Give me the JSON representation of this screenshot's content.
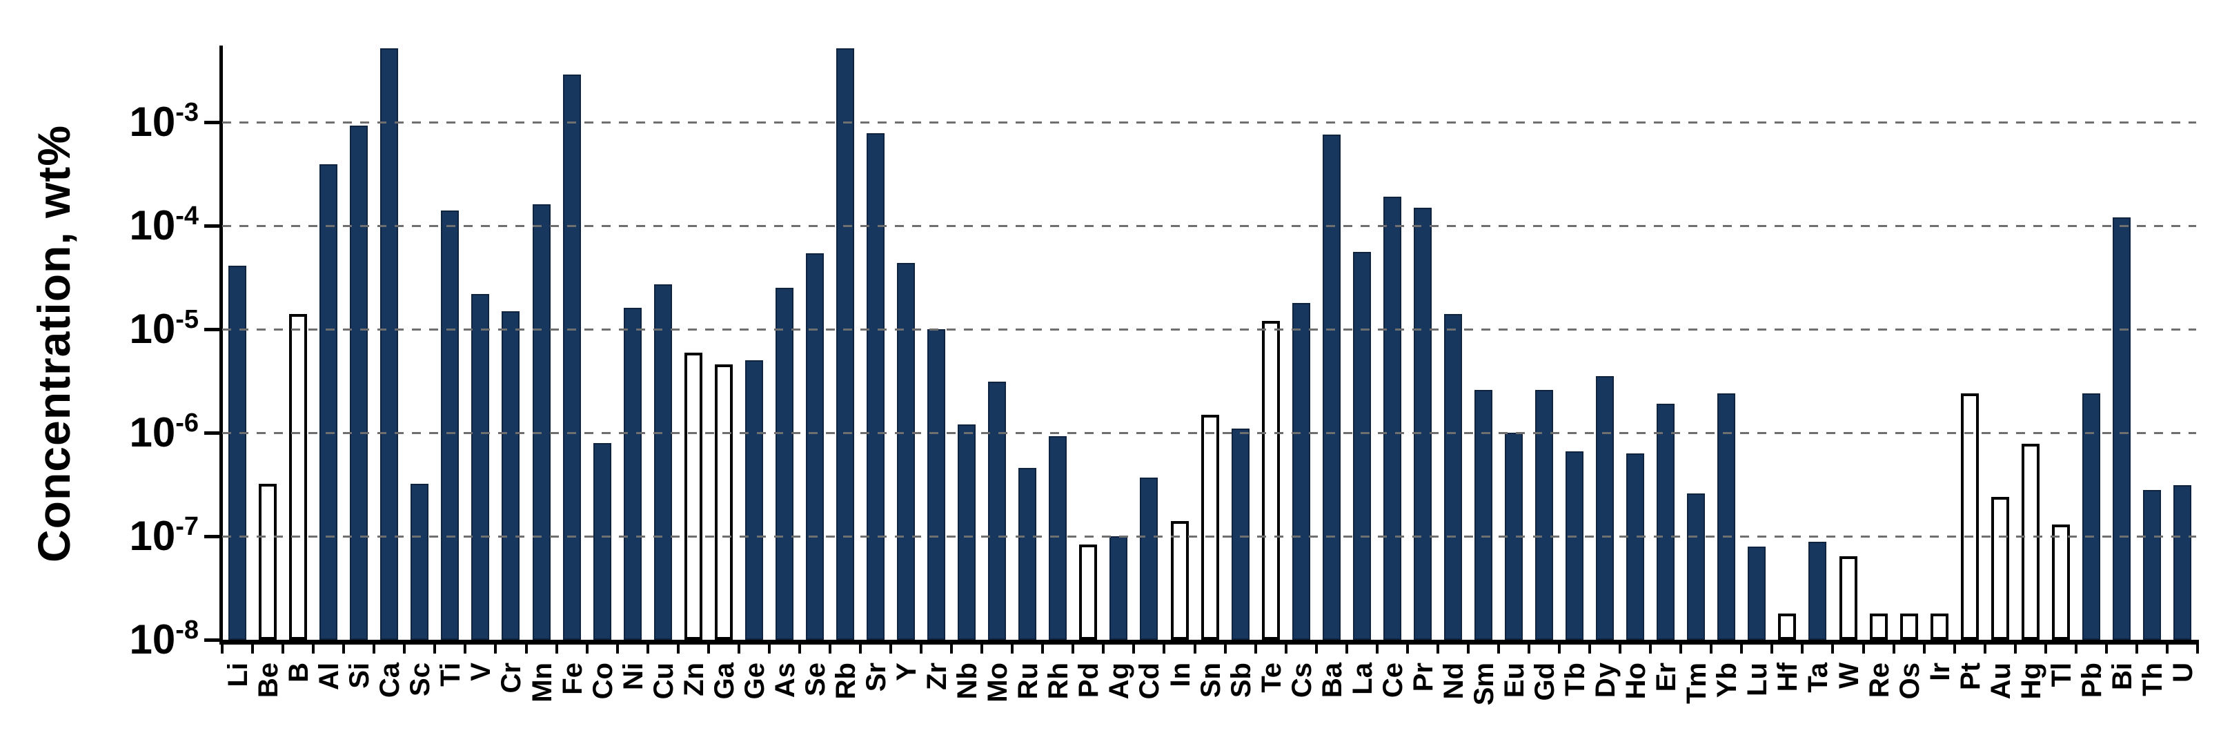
{
  "chart_data": {
    "type": "bar",
    "title": "",
    "xlabel": "",
    "ylabel": "Concentration, wt%",
    "yaxis": {
      "scale": "log",
      "ylim": [
        1e-08,
        0.0052
      ],
      "tick_base": "10",
      "tick_exponents": [
        "-3",
        "-4",
        "-5",
        "-6",
        "-7",
        "-8"
      ],
      "grid": "dashed horizontal at each labeled decade"
    },
    "grid_exponents": [
      -3,
      -4,
      -5,
      -6,
      -7
    ],
    "legend": "none",
    "categories": [
      "Li",
      "Be",
      "B",
      "Al",
      "Si",
      "Ca",
      "Sc",
      "Ti",
      "V",
      "Cr",
      "Mn",
      "Fe",
      "Co",
      "Ni",
      "Cu",
      "Zn",
      "Ga",
      "Ge",
      "As",
      "Se",
      "Rb",
      "Sr",
      "Y",
      "Zr",
      "Nb",
      "Mo",
      "Ru",
      "Rh",
      "Pd",
      "Ag",
      "Cd",
      "In",
      "Sn",
      "Sb",
      "Te",
      "Cs",
      "Ba",
      "La",
      "Ce",
      "Pr",
      "Nd",
      "Sm",
      "Eu",
      "Gd",
      "Tb",
      "Dy",
      "Ho",
      "Er",
      "Tm",
      "Yb",
      "Lu",
      "Hf",
      "Ta",
      "W",
      "Re",
      "Os",
      "Ir",
      "Pt",
      "Au",
      "Hg",
      "Tl",
      "Pb",
      "Bi",
      "Th",
      "U"
    ],
    "values": [
      4.1e-05,
      3.2e-07,
      1.4e-05,
      0.00039,
      0.00093,
      0.0055,
      3.2e-07,
      0.00014,
      2.2e-05,
      1.5e-05,
      0.00016,
      0.0029,
      7.9e-07,
      1.6e-05,
      2.7e-05,
      5.9e-06,
      4.6e-06,
      5e-06,
      2.5e-05,
      5.4e-05,
      0.0055,
      0.00078,
      4.4e-05,
      1e-05,
      1.2e-06,
      3.1e-06,
      4.6e-07,
      9.3e-07,
      8.3e-08,
      1e-07,
      3.7e-07,
      1.4e-07,
      1.5e-06,
      1.1e-06,
      1.2e-05,
      1.8e-05,
      0.00076,
      5.6e-05,
      0.00019,
      0.00015,
      1.4e-05,
      2.6e-06,
      1e-06,
      2.6e-06,
      6.6e-07,
      3.5e-06,
      6.3e-07,
      1.9e-06,
      2.6e-07,
      2.4e-06,
      7.9e-08,
      1.8e-08,
      8.9e-08,
      6.4e-08,
      1.8e-08,
      1.8e-08,
      1.8e-08,
      2.4e-06,
      2.4e-07,
      7.8e-07,
      1.3e-07,
      2.4e-06,
      0.00012,
      2.8e-07,
      3.1e-07
    ],
    "bar_outlined_white": [
      false,
      true,
      true,
      false,
      false,
      false,
      false,
      false,
      false,
      false,
      false,
      false,
      false,
      false,
      false,
      true,
      true,
      false,
      false,
      false,
      false,
      false,
      false,
      false,
      false,
      false,
      false,
      false,
      true,
      false,
      false,
      true,
      true,
      false,
      true,
      false,
      false,
      false,
      false,
      false,
      false,
      false,
      false,
      false,
      false,
      false,
      false,
      false,
      false,
      false,
      false,
      true,
      false,
      true,
      true,
      true,
      true,
      true,
      true,
      true,
      true,
      false,
      false,
      false,
      false
    ],
    "colors": {
      "bar_solid_fill": "#17375E",
      "bar_outline_fill": "#FFFFFF",
      "bar_border": "#000000",
      "gridline": "#6F6F6F",
      "axis": "#000000",
      "background": "#FFFFFF"
    }
  }
}
